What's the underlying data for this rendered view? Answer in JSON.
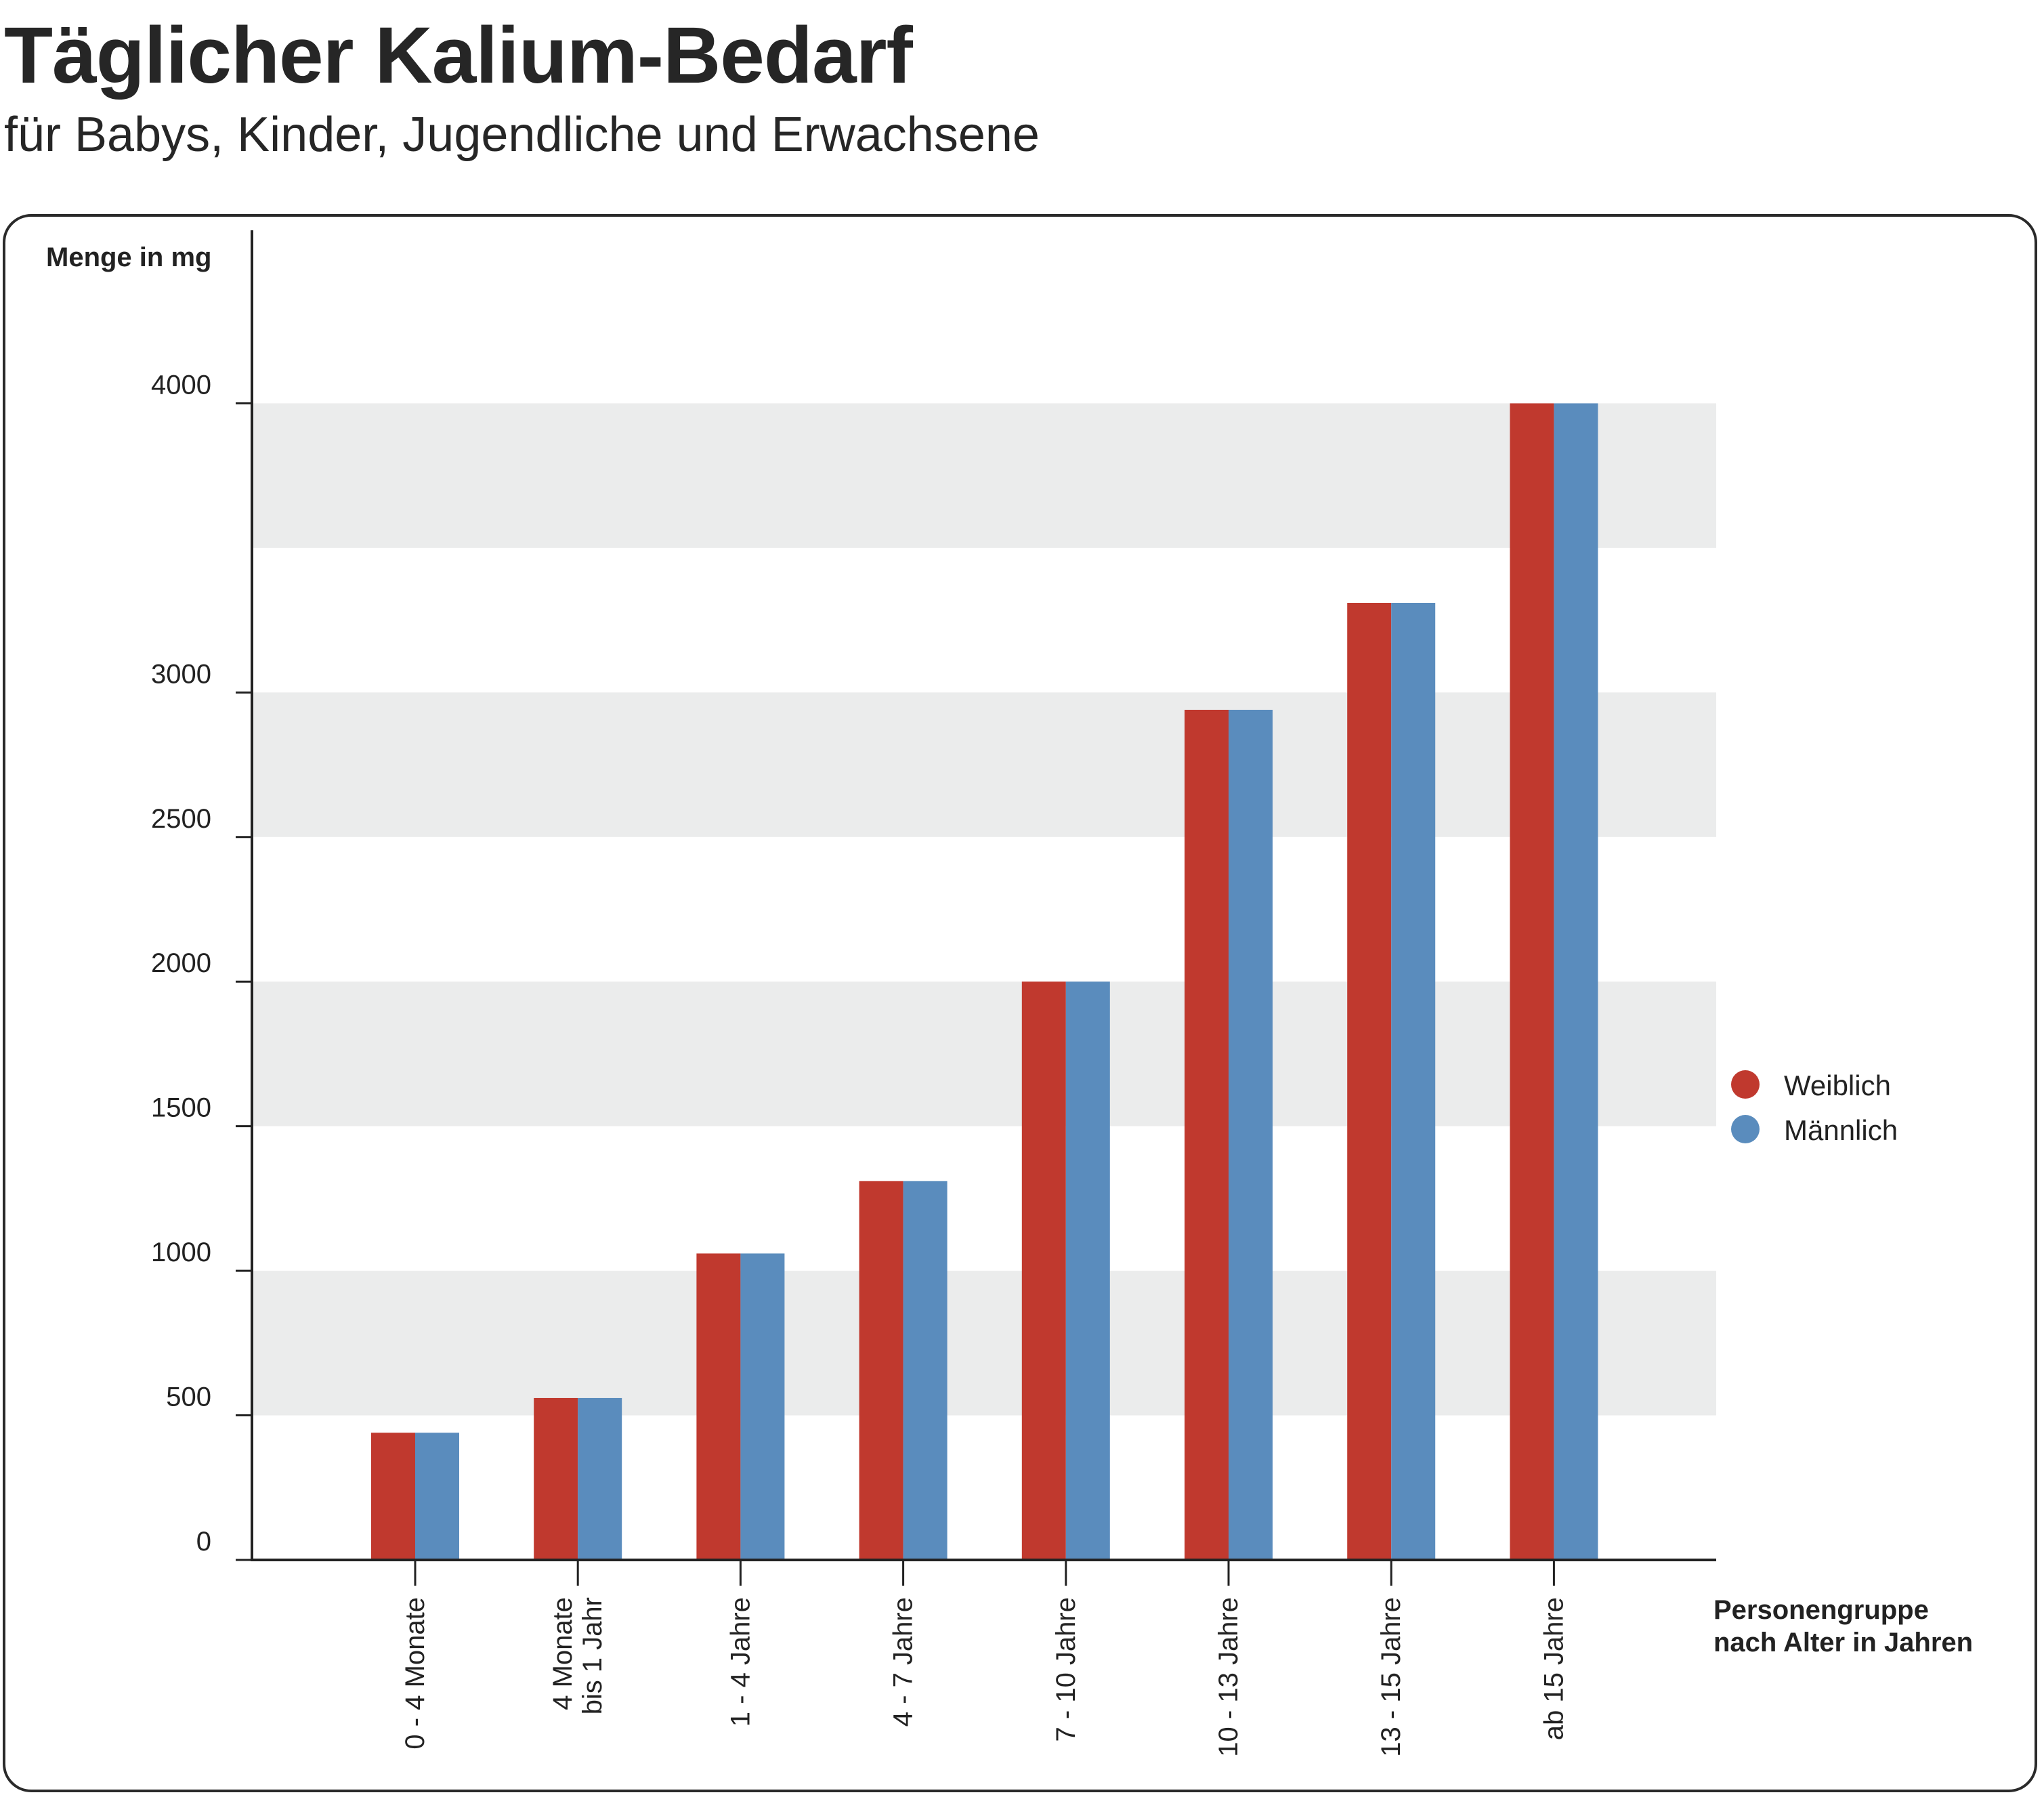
{
  "header": {
    "title": "Täglicher Kalium-Bedarf",
    "subtitle": "für Babys, Kinder, Jugendliche und Erwachsene"
  },
  "chart_data": {
    "type": "bar",
    "ylabel": "Menge in mg",
    "xlabel": [
      "Personengruppe",
      "nach Alter in Jahren"
    ],
    "ylim": [
      0,
      4500
    ],
    "yticks": [
      0,
      500,
      1000,
      1500,
      2000,
      2500,
      3000,
      4000
    ],
    "yticks_note": "",
    "categories": [
      [
        "0 - 4 Monate"
      ],
      [
        "4 Monate",
        "bis 1 Jahr"
      ],
      [
        "1 - 4 Jahre"
      ],
      [
        "4 - 7 Jahre"
      ],
      [
        "7 - 10 Jahre"
      ],
      [
        "10 - 13 Jahre"
      ],
      [
        "13 - 15 Jahre"
      ],
      [
        "ab 15 Jahre"
      ]
    ],
    "series": [
      {
        "name": "Weiblich",
        "color": "#c0392e",
        "values": [
          440,
          560,
          1060,
          1310,
          2000,
          2940,
          3310,
          4000
        ]
      },
      {
        "name": "Männlich",
        "color": "#5a8cbd",
        "values": [
          440,
          560,
          1060,
          1310,
          2000,
          2940,
          3310,
          4000
        ]
      }
    ],
    "band_color": "#ebecec",
    "axis_color": "#222222",
    "legend_position": "right",
    "grid": false
  }
}
